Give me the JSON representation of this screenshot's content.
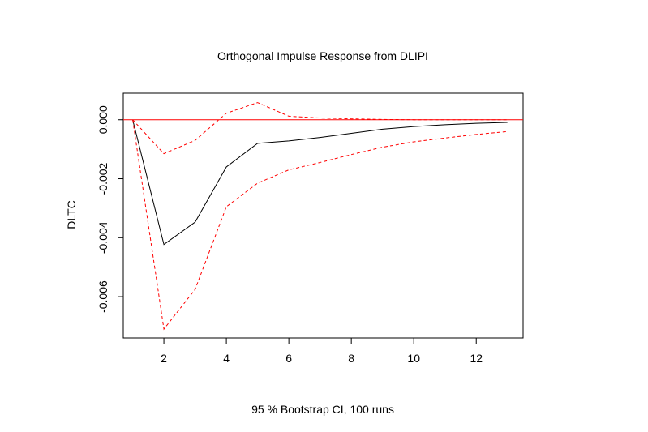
{
  "chart_data": {
    "type": "line",
    "title": "Orthogonal Impulse Response from DLIPI",
    "xlabel": "95 % Bootstrap CI,  100 runs",
    "ylabel": "DLTC",
    "xlim": [
      0.7,
      13.5
    ],
    "ylim": [
      -0.0074,
      0.0009
    ],
    "x_ticks": [
      2,
      4,
      6,
      8,
      10,
      12
    ],
    "x_tick_labels": [
      "2",
      "4",
      "6",
      "8",
      "10",
      "12"
    ],
    "y_ticks": [
      0.0,
      -0.002,
      -0.004,
      -0.006
    ],
    "y_tick_labels": [
      "0.000",
      "-0.002",
      "-0.004",
      "-0.006"
    ],
    "x": [
      1,
      2,
      3,
      4,
      5,
      6,
      7,
      8,
      9,
      10,
      11,
      12,
      13
    ],
    "series": [
      {
        "role": "response",
        "color": "#000000",
        "style": "solid",
        "values": [
          0.0,
          -0.00423,
          -0.00347,
          -0.0016,
          -0.0008,
          -0.00072,
          -0.0006,
          -0.00046,
          -0.00032,
          -0.00023,
          -0.00017,
          -0.00012,
          -9e-05
        ]
      },
      {
        "role": "upper",
        "color": "#ff0000",
        "style": "dashed",
        "values": [
          0.0,
          -0.00115,
          -0.0007,
          0.00022,
          0.00058,
          0.00012,
          6e-05,
          3e-05,
          1e-05,
          0.0,
          0.0,
          0.0,
          0.0
        ]
      },
      {
        "role": "lower",
        "color": "#ff0000",
        "style": "dashed",
        "values": [
          0.0,
          -0.0071,
          -0.00575,
          -0.00295,
          -0.00215,
          -0.0017,
          -0.00145,
          -0.00118,
          -0.00093,
          -0.00075,
          -0.00062,
          -0.0005,
          -0.0004
        ]
      }
    ],
    "reference_line": {
      "y": 0.0,
      "color": "#ff0000"
    }
  }
}
